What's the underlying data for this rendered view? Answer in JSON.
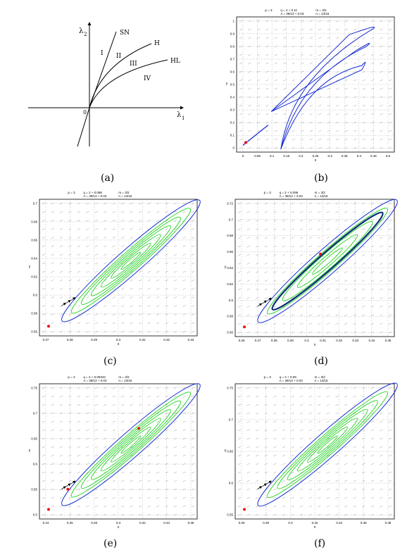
{
  "figure": {
    "bifurcation": {
      "caption": "(a)",
      "x_axis_label": "λ",
      "x_axis_subscript": "1",
      "y_axis_label": "λ",
      "y_axis_subscript": "2",
      "origin_label": "0",
      "curve_labels": [
        "SN",
        "H",
        "HL"
      ],
      "region_labels": [
        "I",
        "II",
        "III",
        "IV"
      ]
    },
    "panels": [
      {
        "caption": "(b)",
        "params": [
          "p = 3",
          "q = 2 + 0.11",
          "m = 3/2",
          "A = 39/13 + 0.03",
          "n = 13/16"
        ],
        "x_label": "x",
        "y_label": "y",
        "x_ticks": [
          "0",
          "0.05",
          "0.1",
          "0.15",
          "0.2",
          "0.25",
          "0.3",
          "0.35",
          "0.4",
          "0.45",
          "0.5"
        ],
        "y_ticks": [
          "0",
          "0.1",
          "0.2",
          "0.3",
          "0.4",
          "0.5",
          "0.6",
          "0.7",
          "0.8",
          "0.9",
          "1"
        ]
      },
      {
        "caption": "(c)",
        "params": [
          "p = 3",
          "q = 2 + 0.098",
          "m = 3/2",
          "A = 39/13 + 0.03",
          "n = 13/16"
        ],
        "x_label": "x",
        "y_label": "y",
        "x_ticks": [
          "0.27",
          "0.28",
          "0.29",
          "0.3",
          "0.31",
          "0.32",
          "0.33"
        ],
        "y_ticks": [
          "0.56",
          "0.58",
          "0.6",
          "0.62",
          "0.64",
          "0.66",
          "0.68",
          "0.7"
        ]
      },
      {
        "caption": "(d)",
        "params": [
          "p = 3",
          "q = 2 + 0.096",
          "m = 3/2",
          "A = 39/13 + 0.03",
          "n = 13/16"
        ],
        "x_label": "x",
        "y_label": "y",
        "x_ticks": [
          "0.26",
          "0.27",
          "0.28",
          "0.29",
          "0.3",
          "0.31",
          "0.32",
          "0.33",
          "0.34",
          "0.35"
        ],
        "y_ticks": [
          "0.56",
          "0.58",
          "0.6",
          "0.62",
          "0.64",
          "0.66",
          "0.68",
          "0.7",
          "0.72"
        ]
      },
      {
        "caption": "(e)",
        "params": [
          "p = 3",
          "q = 2 + 0.09342",
          "m = 3/2",
          "A = 39/13 + 0.03",
          "n = 13/16"
        ],
        "x_label": "x",
        "y_label": "y",
        "x_ticks": [
          "0.24",
          "0.26",
          "0.28",
          "0.3",
          "0.32",
          "0.34",
          "0.36"
        ],
        "y_ticks": [
          "0.5",
          "0.55",
          "0.6",
          "0.65",
          "0.7",
          "0.75"
        ]
      },
      {
        "caption": "(f)",
        "params": [
          "p = 3",
          "q = 2 + 0.09",
          "m = 3/2",
          "A = 39/13 + 0.03",
          "n = 13/16"
        ],
        "x_label": "x",
        "y_label": "y",
        "x_ticks": [
          "0.26",
          "0.28",
          "0.3",
          "0.32",
          "0.34",
          "0.36",
          "0.38"
        ],
        "y_ticks": [
          "0.55",
          "0.6",
          "0.65",
          "0.7",
          "0.75"
        ]
      }
    ],
    "colors": {
      "separatrix": "#1a2fd6",
      "orbit": "#22d422",
      "equilibrium": "#ee1111",
      "arrow": "#111111",
      "grid": "#999999"
    }
  }
}
